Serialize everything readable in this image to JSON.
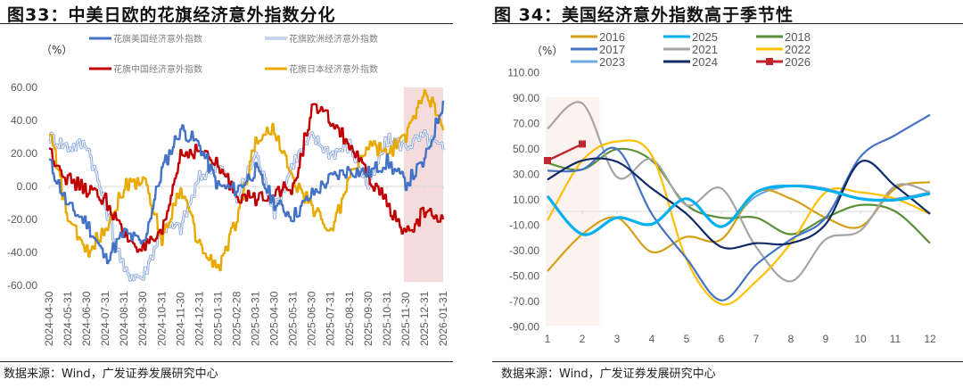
{
  "left": {
    "title": "图33：中美日欧的花旗经济意外指数分化",
    "unit": "（%）",
    "source": "数据来源：Wind，广发证券发展研究中心"
  },
  "right": {
    "title": "图 34：美国经济意外指数高于季节性",
    "unit": "（%）",
    "source": "数据来源：Wind，广发证券发展研究中心"
  },
  "chart_data": [
    {
      "type": "line",
      "title": "中美日欧的花旗经济意外指数分化",
      "ylabel": "（%）",
      "xlabel": "",
      "ylim": [
        -60,
        60
      ],
      "yticks": [
        "60.00",
        "40.00",
        "20.00",
        "0.00",
        "-20.00",
        "-40.00",
        "-60.00"
      ],
      "grid": false,
      "legend_position": "top",
      "categories": [
        "2024-04-30",
        "2024-05-31",
        "2024-06-30",
        "2024-07-31",
        "2024-08-31",
        "2024-09-30",
        "2024-10-31",
        "2024-11-30",
        "2024-12-31",
        "2025-01-31",
        "2025-02-28",
        "2025-03-31",
        "2025-04-30",
        "2025-05-31",
        "2025-06-30",
        "2025-07-31",
        "2025-08-31",
        "2025-09-30",
        "2025-10-31",
        "2025-11-30",
        "2025-12-31",
        "2026-01-31"
      ],
      "shaded_region": {
        "from": "2025-11-30",
        "to": "2026-01-31",
        "color": "#f4dcdc"
      },
      "series": [
        {
          "name": "花旗美国经济意外指数",
          "color": "#4472c4",
          "style": "solid",
          "values": [
            15,
            -12,
            -22,
            -44,
            -28,
            -35,
            10,
            35,
            25,
            0,
            -2,
            10,
            -10,
            -18,
            -5,
            5,
            10,
            8,
            15,
            2,
            15,
            52
          ]
        },
        {
          "name": "花旗欧洲经济意外指数",
          "color": "#8eaadb",
          "style": "double",
          "values": [
            30,
            24,
            26,
            -12,
            -52,
            -55,
            -25,
            -25,
            5,
            15,
            -8,
            20,
            -15,
            15,
            30,
            20,
            25,
            0,
            28,
            25,
            30,
            22
          ]
        },
        {
          "name": "花旗中国经济意外指数",
          "color": "#c00000",
          "style": "solid",
          "values": [
            22,
            4,
            -2,
            -8,
            -30,
            -38,
            -30,
            20,
            22,
            12,
            -5,
            -8,
            -2,
            -2,
            48,
            40,
            25,
            5,
            -10,
            -30,
            -15,
            -20
          ]
        },
        {
          "name": "花旗日本经济意外指数",
          "color": "#e8a900",
          "style": "solid",
          "values": [
            35,
            -20,
            -40,
            -25,
            0,
            5,
            -32,
            0,
            -36,
            -50,
            -20,
            28,
            35,
            2,
            -12,
            -28,
            5,
            25,
            20,
            30,
            60,
            34
          ]
        }
      ]
    },
    {
      "type": "line",
      "title": "美国经济意外指数高于季节性",
      "ylabel": "（%）",
      "xlabel": "",
      "ylim": [
        -90,
        110
      ],
      "yticks": [
        "110.00",
        "90.00",
        "70.00",
        "50.00",
        "30.00",
        "10.00",
        "-10.00",
        "-30.00",
        "-50.00",
        "-70.00",
        "-90.00"
      ],
      "grid": false,
      "legend_position": "top",
      "categories": [
        1,
        2,
        3,
        4,
        5,
        6,
        7,
        8,
        9,
        10,
        11,
        12
      ],
      "shaded_region": {
        "from": 1,
        "to": 2.5,
        "color": "#faf3ef"
      },
      "series": [
        {
          "name": "2016",
          "color": "#d4a017",
          "values": [
            -47,
            -18,
            -5,
            -32,
            -20,
            -22,
            15,
            10,
            -5,
            -12,
            18,
            23
          ]
        },
        {
          "name": "2025",
          "color": "#00b0f0",
          "values": [
            12,
            -18,
            -5,
            -10,
            10,
            -12,
            15,
            20,
            17,
            10,
            9,
            14
          ]
        },
        {
          "name": "2018",
          "color": "#5b8f3a",
          "values": [
            38,
            33,
            49,
            40,
            5,
            -5,
            -5,
            -18,
            -5,
            5,
            0,
            -25
          ]
        },
        {
          "name": "2017",
          "color": "#4472c4",
          "values": [
            32,
            33,
            49,
            -2,
            -37,
            -70,
            -42,
            -22,
            -5,
            43,
            60,
            76
          ]
        },
        {
          "name": "2021",
          "color": "#a5a5a5",
          "values": [
            65,
            85,
            27,
            41,
            5,
            18,
            -28,
            -55,
            -22,
            -15,
            20,
            15
          ]
        },
        {
          "name": "2022",
          "color": "#ffc000",
          "values": [
            -7,
            40,
            55,
            44,
            -38,
            -73,
            -55,
            -25,
            15,
            15,
            10,
            -2
          ]
        },
        {
          "name": "2023",
          "color": "#6fa8dc",
          "values": [
            12,
            -18,
            -5,
            -10,
            10,
            -12,
            12,
            20,
            18,
            10,
            10,
            15
          ]
        },
        {
          "name": "2024",
          "color": "#0f2a66",
          "values": [
            25,
            40,
            39,
            18,
            -2,
            -28,
            -25,
            -25,
            -10,
            39,
            20,
            -2
          ]
        },
        {
          "name": "2026",
          "color": "#c0262d",
          "marker": "square",
          "values": [
            40,
            53
          ]
        }
      ]
    }
  ]
}
